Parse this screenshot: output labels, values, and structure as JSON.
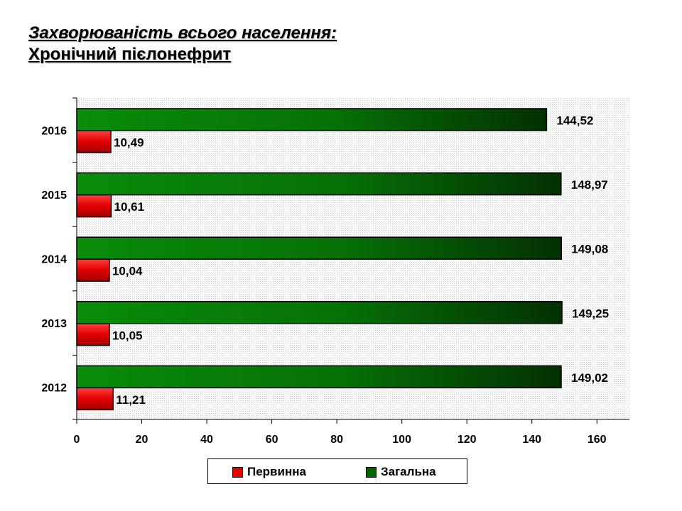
{
  "title": {
    "line1": "Захворюваність всього населення:",
    "line2": "Хронічний пієлонефрит"
  },
  "legend": {
    "items": [
      {
        "label": "Первинна",
        "color": "#e00000"
      },
      {
        "label": "Загальна",
        "color": "#006400"
      }
    ]
  },
  "chart_data": {
    "type": "bar",
    "orientation": "horizontal",
    "categories": [
      "2016",
      "2015",
      "2014",
      "2013",
      "2012"
    ],
    "series": [
      {
        "name": "Загальна",
        "values": [
          144.52,
          148.97,
          149.08,
          149.25,
          149.02
        ],
        "labels": [
          "144,52",
          "148,97",
          "149,08",
          "149,25",
          "149,02"
        ]
      },
      {
        "name": "Первинна",
        "values": [
          10.49,
          10.61,
          10.04,
          10.05,
          11.21
        ],
        "labels": [
          "10,49",
          "10,61",
          "10,04",
          "10,05",
          "11,21"
        ]
      }
    ],
    "xlim": [
      0,
      170
    ],
    "xticks": [
      0,
      20,
      40,
      60,
      80,
      100,
      120,
      140,
      160
    ],
    "colors": {
      "Загальна": "#006400",
      "Первинна": "#e00000"
    },
    "grid": false,
    "legend_position": "bottom"
  }
}
